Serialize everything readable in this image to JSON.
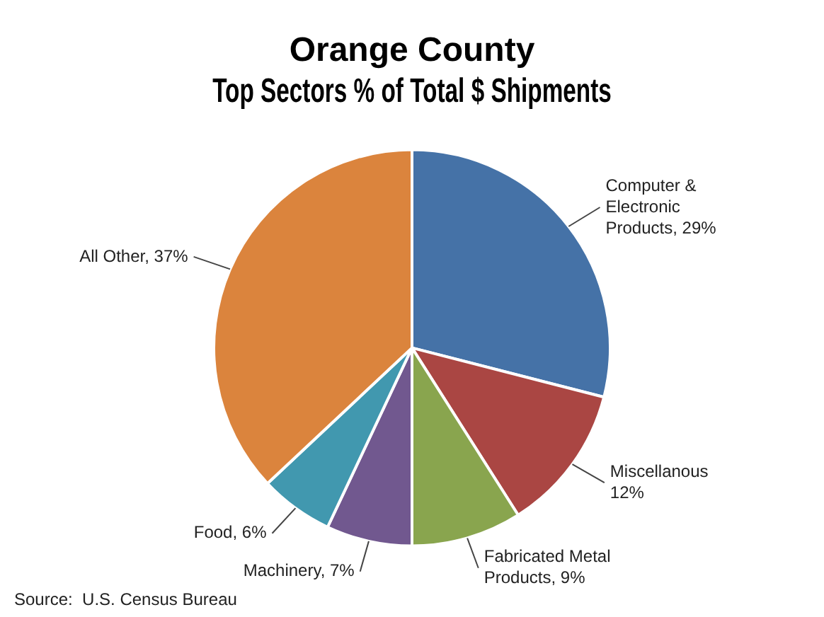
{
  "chart_data": {
    "type": "pie",
    "title": "Orange County\nTop Sectors % of Total $ Shipments",
    "categories": [
      "Computer & Electronic Products",
      "Miscellanous",
      "Fabricated Metal Products",
      "Machinery",
      "Food",
      "All Other"
    ],
    "values": [
      29,
      12,
      9,
      7,
      6,
      37
    ],
    "value_labels": [
      "29%",
      "12%",
      "9%",
      "7%",
      "6%",
      "37%"
    ],
    "colors": [
      "#4572a7",
      "#aa4643",
      "#89a54e",
      "#71588f",
      "#4198af",
      "#db843d"
    ],
    "annotations": [
      "Source:  U.S. Census Bureau"
    ]
  }
}
